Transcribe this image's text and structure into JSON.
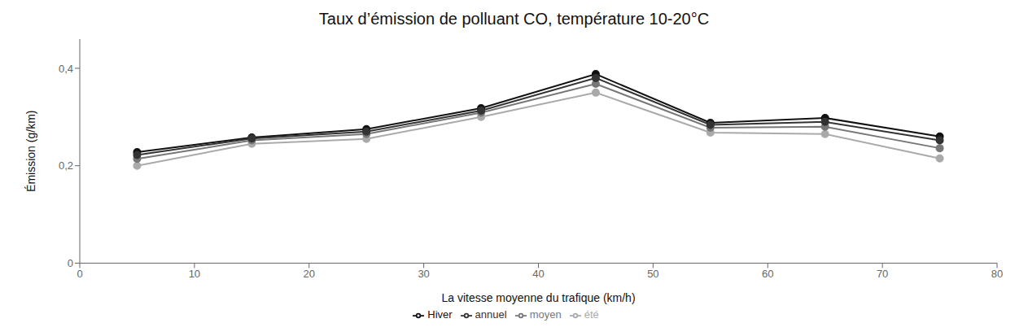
{
  "chart_data": {
    "type": "line",
    "title": "Taux d’émission de polluant CO, température 10-20°C",
    "x_label": "La vitesse moyenne du trafique (km/h)",
    "y_label": "Émission (g/km)",
    "x": [
      5,
      15,
      25,
      35,
      45,
      55,
      65,
      75
    ],
    "series": [
      {
        "name": "Hiver",
        "color": "#111111",
        "values": [
          0.228,
          0.258,
          0.275,
          0.318,
          0.388,
          0.288,
          0.298,
          0.26
        ]
      },
      {
        "name": "été",
        "color": "#aaaaaa",
        "values": [
          0.2,
          0.245,
          0.255,
          0.3,
          0.35,
          0.268,
          0.265,
          0.215
        ]
      },
      {
        "name": "moyen",
        "color": "#777777",
        "values": [
          0.214,
          0.252,
          0.265,
          0.309,
          0.368,
          0.278,
          0.28,
          0.236
        ]
      },
      {
        "name": "annuel",
        "color": "#333333",
        "values": [
          0.222,
          0.256,
          0.27,
          0.313,
          0.38,
          0.284,
          0.29,
          0.252
        ]
      }
    ],
    "xlim": [
      0,
      80
    ],
    "ylim": [
      0,
      0.46
    ],
    "xticks": [
      0,
      10,
      20,
      30,
      40,
      50,
      60,
      70,
      80
    ],
    "yticks": [
      0,
      {
        "value": 0.2,
        "label": "0,2"
      },
      {
        "value": 0.4,
        "label": "0,4"
      }
    ],
    "grid": false,
    "legend": "bottom",
    "marker": "o",
    "line_style": "solid"
  }
}
